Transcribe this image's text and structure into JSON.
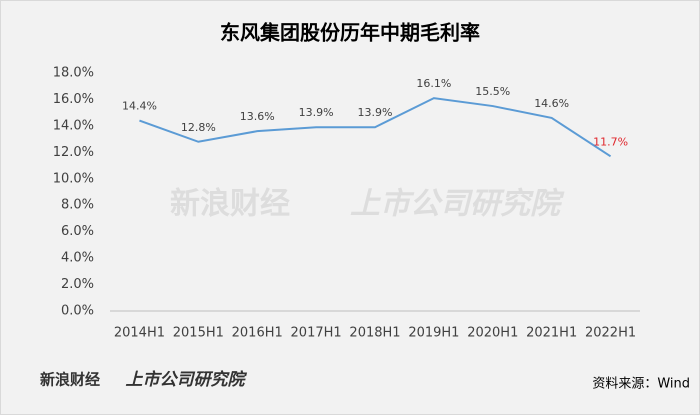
{
  "chart_data": {
    "type": "line",
    "title": "东风集团股份历年中期毛利率",
    "categories": [
      "2014H1",
      "2015H1",
      "2016H1",
      "2017H1",
      "2018H1",
      "2019H1",
      "2020H1",
      "2021H1",
      "2022H1"
    ],
    "values": [
      14.4,
      12.8,
      13.6,
      13.9,
      13.9,
      16.1,
      15.5,
      14.6,
      11.7
    ],
    "value_labels": [
      "14.4%",
      "12.8%",
      "13.6%",
      "13.9%",
      "13.9%",
      "16.1%",
      "15.5%",
      "14.6%",
      "11.7%"
    ],
    "value_label_colors": [
      "#404040",
      "#404040",
      "#404040",
      "#404040",
      "#404040",
      "#404040",
      "#404040",
      "#404040",
      "#e0252b"
    ],
    "color": "#5b9bd5",
    "ylim": [
      0,
      18
    ],
    "yticks": [
      {
        "value": 0,
        "label": "0.0%"
      },
      {
        "value": 2,
        "label": "2.0%"
      },
      {
        "value": 4,
        "label": "4.0%"
      },
      {
        "value": 6,
        "label": "6.0%"
      },
      {
        "value": 8,
        "label": "8.0%"
      },
      {
        "value": 10,
        "label": "10.0%"
      },
      {
        "value": 12,
        "label": "12.0%"
      },
      {
        "value": 14,
        "label": "14.0%"
      },
      {
        "value": 16,
        "label": "16.0%"
      },
      {
        "value": 18,
        "label": "18.0%"
      }
    ],
    "grid": false,
    "source": "资料来源：Wind",
    "branding": [
      "新浪财经",
      "上市公司研究院"
    ]
  }
}
